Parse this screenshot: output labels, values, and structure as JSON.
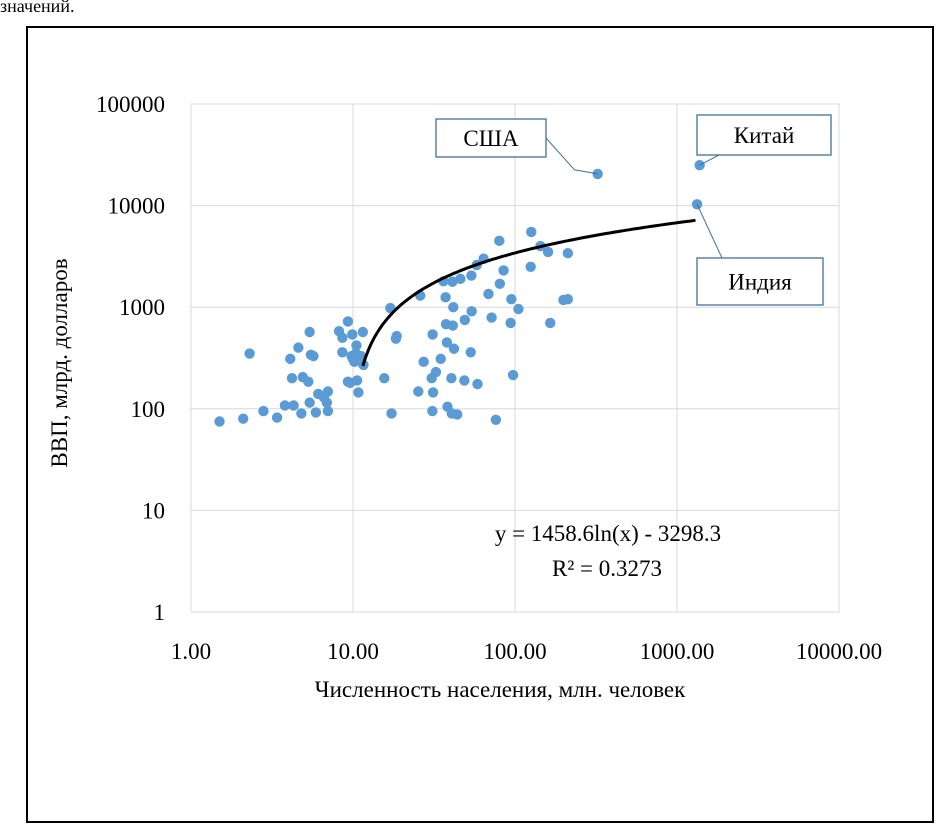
{
  "caption_fragment": "значений.",
  "chart_data": {
    "type": "scatter",
    "xlabel": "Численность населения, млн. человек",
    "ylabel": "ВВП, млрд. долларов",
    "x_scale": "log",
    "y_scale": "log",
    "xlim": [
      1,
      10000
    ],
    "ylim": [
      1,
      100000
    ],
    "x_ticks": [
      "1.00",
      "10.00",
      "100.00",
      "1000.00",
      "10000.00"
    ],
    "y_ticks": [
      "1",
      "10",
      "100",
      "1000",
      "10000",
      "100000"
    ],
    "grid": true,
    "marker_color": "#5b9bd5",
    "points": [
      [
        1.5,
        75
      ],
      [
        2.1,
        80
      ],
      [
        2.3,
        350
      ],
      [
        2.8,
        95
      ],
      [
        3.4,
        82
      ],
      [
        3.8,
        108
      ],
      [
        4.1,
        310
      ],
      [
        4.2,
        200
      ],
      [
        4.3,
        108
      ],
      [
        4.6,
        400
      ],
      [
        4.8,
        90
      ],
      [
        4.9,
        205
      ],
      [
        5.3,
        185
      ],
      [
        5.4,
        115
      ],
      [
        5.4,
        570
      ],
      [
        5.5,
        340
      ],
      [
        5.7,
        330
      ],
      [
        5.9,
        92
      ],
      [
        6.1,
        140
      ],
      [
        6.6,
        130
      ],
      [
        6.9,
        115
      ],
      [
        7.0,
        148
      ],
      [
        7.0,
        95
      ],
      [
        8.2,
        580
      ],
      [
        8.6,
        500
      ],
      [
        8.6,
        360
      ],
      [
        9.3,
        725
      ],
      [
        9.3,
        185
      ],
      [
        9.6,
        180
      ],
      [
        9.8,
        330
      ],
      [
        9.9,
        540
      ],
      [
        10.0,
        310
      ],
      [
        10.2,
        290
      ],
      [
        10.4,
        350
      ],
      [
        10.5,
        420
      ],
      [
        10.6,
        190
      ],
      [
        10.8,
        145
      ],
      [
        11.2,
        330
      ],
      [
        11.5,
        570
      ],
      [
        11.6,
        270
      ],
      [
        15.6,
        200
      ],
      [
        17.0,
        980
      ],
      [
        17.3,
        90
      ],
      [
        18.4,
        490
      ],
      [
        18.6,
        520
      ],
      [
        25.3,
        148
      ],
      [
        26.0,
        1300
      ],
      [
        27.3,
        290
      ],
      [
        30.6,
        200
      ],
      [
        30.9,
        95
      ],
      [
        31.0,
        540
      ],
      [
        31.2,
        145
      ],
      [
        32.5,
        230
      ],
      [
        34.8,
        310
      ],
      [
        36.2,
        1800
      ],
      [
        37.3,
        1250
      ],
      [
        37.5,
        680
      ],
      [
        38.0,
        450
      ],
      [
        38.3,
        105
      ],
      [
        40.5,
        200
      ],
      [
        40.7,
        90
      ],
      [
        41.1,
        1780
      ],
      [
        41.3,
        660
      ],
      [
        41.6,
        1000
      ],
      [
        42.0,
        390
      ],
      [
        44.0,
        88
      ],
      [
        46.0,
        1900
      ],
      [
        48.7,
        190
      ],
      [
        49.0,
        750
      ],
      [
        53.3,
        360
      ],
      [
        53.8,
        2050
      ],
      [
        54.0,
        910
      ],
      [
        58.0,
        2600
      ],
      [
        58.7,
        175
      ],
      [
        64.0,
        3000
      ],
      [
        68.6,
        1350
      ],
      [
        71.7,
        790
      ],
      [
        76.2,
        78
      ],
      [
        80.0,
        4500
      ],
      [
        80.6,
        1700
      ],
      [
        85.0,
        2300
      ],
      [
        94.0,
        700
      ],
      [
        95.0,
        1200
      ],
      [
        97.3,
        215
      ],
      [
        105.0,
        960
      ],
      [
        126.0,
        5500
      ],
      [
        125.0,
        2500
      ],
      [
        143.6,
        4000
      ],
      [
        160.0,
        3500
      ],
      [
        165.0,
        700
      ],
      [
        199.0,
        1180
      ],
      [
        212.0,
        1200
      ],
      [
        212.0,
        3400
      ],
      [
        324.0,
        20500
      ],
      [
        1330.0,
        10300
      ],
      [
        1380.0,
        25000
      ]
    ],
    "trendline": {
      "equation": "y = 1458.6ln(x) - 3298.3",
      "r2_label": "R² = 0.3273",
      "a": 1458.6,
      "b": -3298.3,
      "x_from": 11.5,
      "x_to": 1300
    },
    "annotations": [
      {
        "label": "США",
        "point": [
          324.0,
          20500
        ]
      },
      {
        "label": "Китай",
        "point": [
          1380.0,
          25000
        ]
      },
      {
        "label": "Индия",
        "point": [
          1330.0,
          10300
        ]
      }
    ]
  }
}
